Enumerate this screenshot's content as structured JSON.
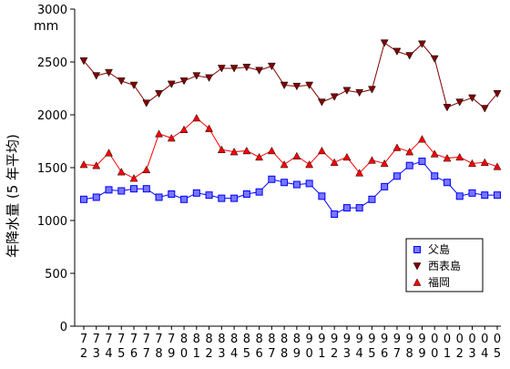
{
  "chart_data": {
    "type": "line",
    "unit": "mm",
    "ylabel": "年降水量 (5 年平均)",
    "ylim": [
      0,
      3000
    ],
    "yticks": [
      0,
      500,
      1000,
      1500,
      2000,
      2500,
      3000
    ],
    "grid": false,
    "legend_position": "bottom-right",
    "x": [
      "72",
      "73",
      "74",
      "75",
      "76",
      "77",
      "78",
      "79",
      "80",
      "81",
      "82",
      "83",
      "84",
      "85",
      "86",
      "87",
      "88",
      "89",
      "90",
      "91",
      "92",
      "93",
      "94",
      "95",
      "96",
      "97",
      "98",
      "99",
      "00",
      "01",
      "02",
      "03",
      "04",
      "05"
    ],
    "series": [
      {
        "name": "父島",
        "color": "#0000ff",
        "fill": "#7777ff",
        "marker": "square",
        "values": [
          1200,
          1220,
          1290,
          1280,
          1300,
          1300,
          1220,
          1250,
          1200,
          1260,
          1240,
          1210,
          1210,
          1250,
          1270,
          1390,
          1360,
          1340,
          1350,
          1230,
          1060,
          1120,
          1120,
          1200,
          1320,
          1420,
          1520,
          1560,
          1420,
          1360,
          1230,
          1260,
          1240,
          1240
        ]
      },
      {
        "name": "西表島",
        "color": "#800000",
        "fill": "#800000",
        "marker": "triangle-down",
        "values": [
          2510,
          2370,
          2400,
          2320,
          2280,
          2110,
          2200,
          2290,
          2320,
          2370,
          2350,
          2440,
          2440,
          2450,
          2420,
          2460,
          2280,
          2270,
          2280,
          2120,
          2170,
          2230,
          2210,
          2240,
          2680,
          2600,
          2560,
          2670,
          2530,
          2070,
          2120,
          2160,
          2060,
          2200
        ]
      },
      {
        "name": "福岡",
        "color": "#ff0000",
        "fill": "#ff0000",
        "marker": "triangle-up",
        "values": [
          1530,
          1520,
          1640,
          1460,
          1400,
          1480,
          1820,
          1780,
          1860,
          1970,
          1870,
          1670,
          1650,
          1660,
          1600,
          1660,
          1530,
          1610,
          1530,
          1660,
          1550,
          1600,
          1450,
          1570,
          1540,
          1690,
          1650,
          1770,
          1630,
          1590,
          1600,
          1540,
          1550,
          1510
        ]
      }
    ]
  }
}
